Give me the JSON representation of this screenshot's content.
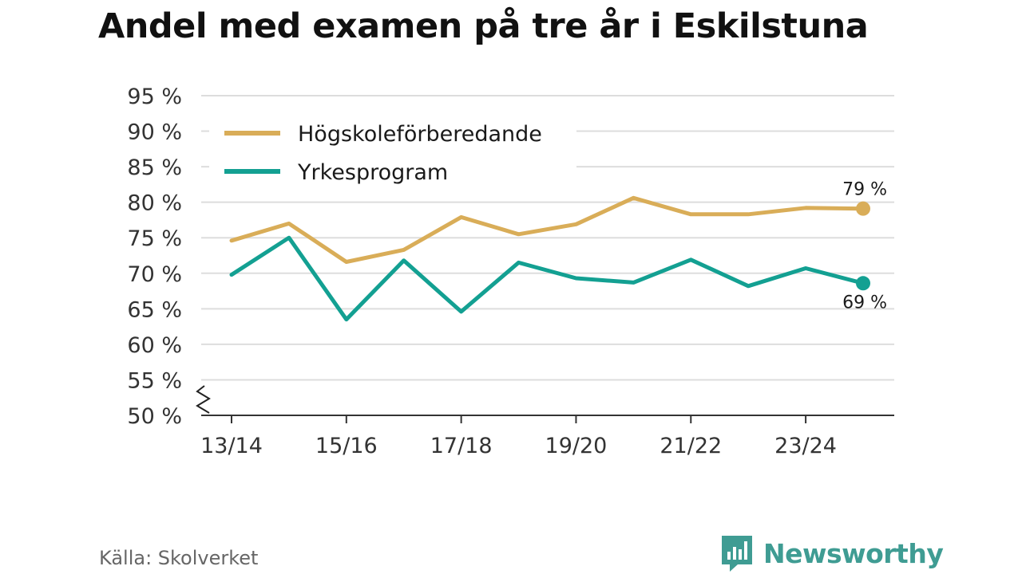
{
  "chart_data": {
    "type": "line",
    "title": "Andel med examen på tre år i Eskilstuna",
    "xlabel": "",
    "ylabel": "",
    "ylim": [
      50,
      95
    ],
    "yticks": [
      50,
      55,
      60,
      65,
      70,
      75,
      80,
      85,
      90,
      95
    ],
    "ytick_labels": [
      "50 %",
      "55 %",
      "60 %",
      "65 %",
      "70 %",
      "75 %",
      "80 %",
      "85 %",
      "90 %",
      "95 %"
    ],
    "axis_break": true,
    "categories": [
      "13/14",
      "14/15",
      "15/16",
      "16/17",
      "17/18",
      "18/19",
      "19/20",
      "20/21",
      "21/22",
      "22/23",
      "23/24",
      "24/25"
    ],
    "x_tick_labels": [
      "13/14",
      "",
      "15/16",
      "",
      "17/18",
      "",
      "19/20",
      "",
      "21/22",
      "",
      "23/24",
      ""
    ],
    "legend_position": "top-left",
    "series": [
      {
        "name": "Högskoleförberedande",
        "color": "#d9ad58",
        "values": [
          74.6,
          77.0,
          71.6,
          73.3,
          77.9,
          75.5,
          76.9,
          80.6,
          78.3,
          78.3,
          79.2,
          79.1
        ],
        "end_label": "79 %"
      },
      {
        "name": "Yrkesprogram",
        "color": "#13a092",
        "values": [
          69.8,
          75.0,
          63.5,
          71.8,
          64.6,
          71.5,
          69.3,
          68.7,
          71.9,
          68.2,
          70.7,
          68.6
        ],
        "end_label": "69 %"
      }
    ]
  },
  "footer": {
    "source": "Källa: Skolverket",
    "brand": "Newsworthy"
  },
  "colors": {
    "brand": "#3f9c93",
    "grid": "#dddddd",
    "axis": "#333333"
  }
}
